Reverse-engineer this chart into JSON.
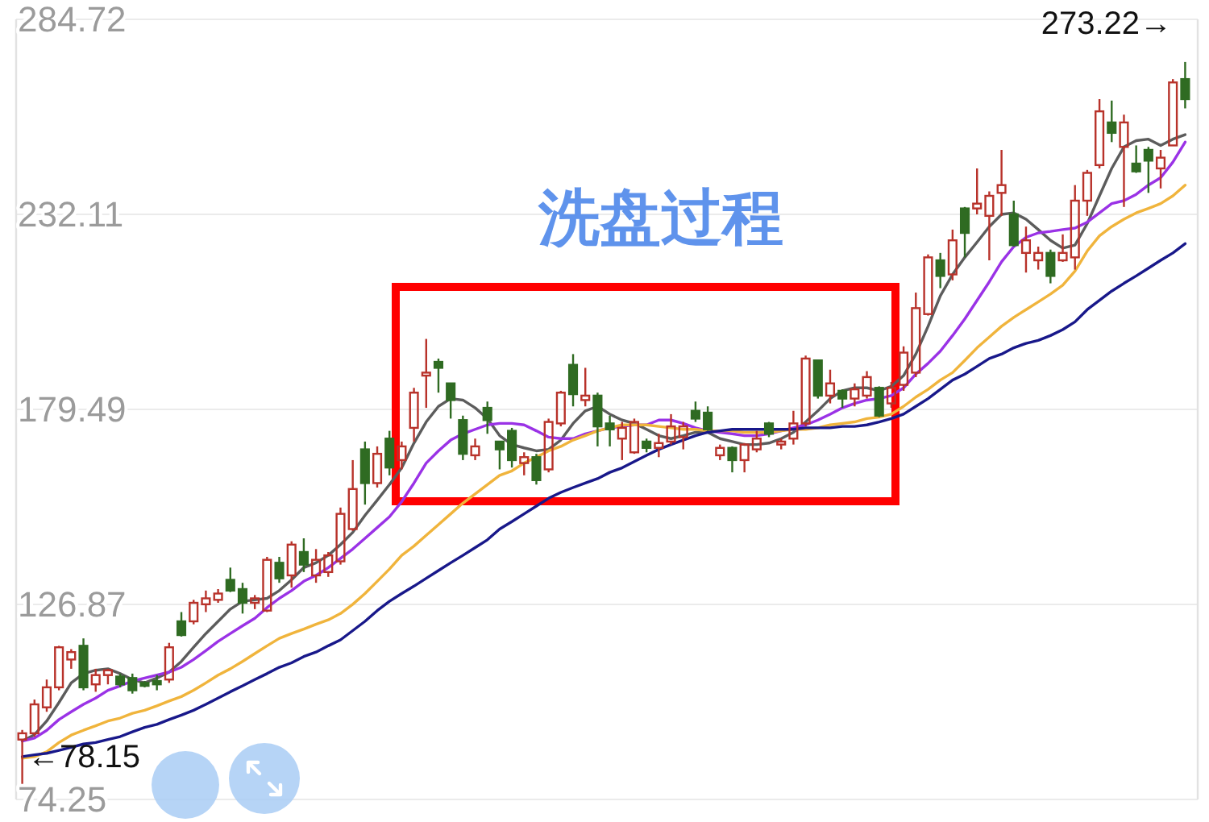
{
  "chart_data": {
    "type": "candlestick",
    "categories": [
      null,
      null,
      null,
      null,
      null,
      null,
      null,
      null,
      null,
      null,
      null,
      null,
      null,
      null,
      null,
      null,
      null,
      null,
      null,
      null,
      null,
      null,
      null,
      null,
      null,
      null,
      null,
      null,
      null,
      null,
      null,
      null,
      null,
      null,
      null,
      null,
      null,
      null,
      null,
      null,
      null,
      null,
      null,
      null,
      null,
      null,
      null,
      null,
      null,
      null,
      null,
      null,
      null,
      null,
      null,
      null,
      null,
      null,
      null,
      null,
      null,
      null,
      null,
      null,
      null,
      null,
      null,
      null,
      null,
      null,
      null,
      null,
      null,
      null,
      null,
      null,
      null,
      null,
      null,
      null,
      null,
      null,
      null,
      null,
      null,
      null,
      null,
      null,
      null,
      null,
      null,
      null,
      null,
      null,
      null,
      null
    ],
    "ohlc": [
      [
        90.4,
        93.0,
        78.15,
        92.1
      ],
      [
        92.1,
        101.2,
        91.2,
        99.9
      ],
      [
        99.1,
        106.6,
        97.9,
        104.5
      ],
      [
        104.5,
        115.7,
        103.7,
        115.3
      ],
      [
        112.0,
        114.8,
        109.5,
        114.0
      ],
      [
        115.7,
        117.7,
        103.7,
        104.5
      ],
      [
        105.3,
        109.5,
        103.3,
        107.8
      ],
      [
        107.8,
        109.5,
        105.3,
        109.1
      ],
      [
        107.4,
        108.2,
        104.5,
        105.3
      ],
      [
        107.0,
        108.2,
        102.8,
        103.7
      ],
      [
        105.7,
        106.2,
        104.5,
        104.9
      ],
      [
        106.2,
        107.8,
        103.7,
        105.3
      ],
      [
        106.6,
        116.5,
        105.7,
        115.3
      ],
      [
        122.3,
        124.8,
        118.2,
        118.6
      ],
      [
        122.3,
        128.1,
        121.5,
        127.3
      ],
      [
        126.9,
        130.6,
        124.8,
        128.5
      ],
      [
        128.1,
        131.0,
        127.3,
        129.8
      ],
      [
        133.5,
        136.8,
        130.2,
        130.6
      ],
      [
        131.0,
        132.7,
        124.4,
        127.3
      ],
      [
        127.3,
        129.4,
        125.6,
        128.5
      ],
      [
        125.2,
        139.7,
        124.8,
        138.9
      ],
      [
        138.1,
        139.7,
        132.7,
        133.9
      ],
      [
        134.7,
        143.9,
        131.4,
        143.0
      ],
      [
        141.0,
        144.7,
        135.6,
        137.6
      ],
      [
        134.7,
        141.8,
        132.7,
        138.9
      ],
      [
        135.6,
        141.0,
        134.3,
        140.1
      ],
      [
        138.5,
        153.0,
        137.6,
        151.3
      ],
      [
        147.2,
        165.8,
        146.7,
        158.0
      ],
      [
        168.7,
        170.8,
        153.8,
        159.6
      ],
      [
        159.6,
        169.5,
        158.4,
        167.5
      ],
      [
        171.6,
        173.7,
        161.7,
        163.8
      ],
      [
        165.8,
        170.8,
        163.3,
        169.5
      ],
      [
        174.5,
        185.3,
        170.8,
        184.0
      ],
      [
        188.6,
        198.5,
        179.9,
        189.4
      ],
      [
        192.3,
        193.2,
        184.0,
        190.7
      ],
      [
        186.5,
        186.5,
        177.0,
        182.0
      ],
      [
        176.6,
        177.8,
        165.8,
        167.5
      ],
      [
        167.1,
        171.6,
        165.8,
        169.5
      ],
      [
        179.9,
        181.6,
        172.9,
        176.6
      ],
      [
        170.8,
        170.8,
        163.3,
        168.7
      ],
      [
        173.7,
        174.5,
        163.8,
        165.8
      ],
      [
        165.0,
        167.9,
        161.7,
        166.6
      ],
      [
        166.6,
        167.5,
        159.2,
        160.4
      ],
      [
        163.3,
        177.0,
        162.5,
        176.1
      ],
      [
        175.7,
        184.5,
        174.9,
        184.0
      ],
      [
        191.5,
        194.4,
        180.3,
        183.6
      ],
      [
        182.0,
        190.7,
        180.3,
        183.2
      ],
      [
        183.2,
        184.0,
        169.5,
        174.9
      ],
      [
        175.7,
        177.8,
        169.5,
        174.1
      ],
      [
        171.6,
        176.1,
        165.8,
        174.5
      ],
      [
        167.9,
        177.0,
        167.5,
        176.1
      ],
      [
        170.8,
        171.6,
        167.9,
        169.1
      ],
      [
        169.1,
        172.9,
        166.6,
        170.4
      ],
      [
        170.8,
        178.2,
        170.0,
        174.9
      ],
      [
        172.0,
        176.1,
        168.7,
        174.9
      ],
      [
        179.1,
        181.6,
        176.1,
        177.0
      ],
      [
        178.6,
        180.3,
        173.7,
        174.1
      ],
      [
        167.1,
        170.0,
        165.8,
        169.1
      ],
      [
        169.1,
        169.5,
        162.5,
        165.8
      ],
      [
        165.8,
        170.4,
        162.5,
        170.0
      ],
      [
        168.7,
        173.7,
        167.9,
        171.6
      ],
      [
        175.7,
        176.1,
        172.0,
        172.9
      ],
      [
        170.0,
        171.6,
        168.7,
        170.8
      ],
      [
        171.6,
        179.1,
        170.0,
        175.7
      ],
      [
        175.7,
        194.0,
        174.9,
        193.2
      ],
      [
        192.7,
        192.7,
        182.4,
        183.2
      ],
      [
        183.2,
        190.2,
        181.1,
        186.5
      ],
      [
        184.5,
        184.9,
        179.9,
        182.4
      ],
      [
        182.4,
        186.5,
        180.3,
        184.9
      ],
      [
        183.2,
        189.8,
        182.4,
        188.2
      ],
      [
        185.3,
        185.7,
        177.4,
        177.8
      ],
      [
        181.1,
        186.9,
        179.9,
        185.3
      ],
      [
        186.1,
        196.5,
        184.5,
        194.8
      ],
      [
        189.4,
        211.0,
        188.2,
        206.8
      ],
      [
        205.2,
        221.3,
        204.8,
        220.5
      ],
      [
        219.7,
        221.7,
        212.2,
        215.5
      ],
      [
        215.9,
        228.0,
        214.3,
        225.1
      ],
      [
        233.7,
        234.1,
        220.5,
        227.1
      ],
      [
        233.7,
        244.5,
        232.1,
        235.0
      ],
      [
        231.7,
        238.3,
        219.7,
        237.1
      ],
      [
        237.9,
        249.5,
        231.7,
        240.0
      ],
      [
        232.1,
        235.8,
        223.4,
        223.8
      ],
      [
        221.7,
        228.8,
        216.4,
        225.1
      ],
      [
        219.7,
        223.4,
        217.2,
        221.7
      ],
      [
        221.7,
        222.6,
        213.5,
        215.5
      ],
      [
        219.7,
        226.7,
        219.3,
        221.7
      ],
      [
        220.5,
        240.0,
        217.2,
        235.8
      ],
      [
        235.8,
        244.1,
        231.7,
        243.3
      ],
      [
        245.4,
        263.2,
        244.5,
        259.9
      ],
      [
        256.9,
        262.8,
        251.6,
        254.1
      ],
      [
        250.3,
        259.0,
        234.1,
        256.9
      ],
      [
        245.8,
        250.7,
        243.3,
        243.7
      ],
      [
        249.5,
        250.3,
        237.9,
        246.6
      ],
      [
        244.5,
        249.5,
        239.1,
        247.4
      ],
      [
        250.7,
        268.6,
        250.7,
        267.7
      ],
      [
        268.6,
        273.22,
        260.7,
        263.2
      ]
    ],
    "colors": [
      "#b8322a",
      "#b8322a",
      "#b8322a",
      "#b8322a",
      "#b8322a",
      "#2f6b22",
      "#b8322a",
      "#b8322a",
      "#2f6b22",
      "#2f6b22",
      "#2f6b22",
      "#2f6b22",
      "#b8322a",
      "#2f6b22",
      "#b8322a",
      "#b8322a",
      "#b8322a",
      "#2f6b22",
      "#2f6b22",
      "#b8322a",
      "#b8322a",
      "#2f6b22",
      "#b8322a",
      "#2f6b22",
      "#b8322a",
      "#b8322a",
      "#b8322a",
      "#b8322a",
      "#2f6b22",
      "#b8322a",
      "#2f6b22",
      "#b8322a",
      "#b8322a",
      "#b8322a",
      "#2f6b22",
      "#2f6b22",
      "#2f6b22",
      "#b8322a",
      "#2f6b22",
      "#2f6b22",
      "#2f6b22",
      "#b8322a",
      "#2f6b22",
      "#b8322a",
      "#b8322a",
      "#2f6b22",
      "#b8322a",
      "#2f6b22",
      "#2f6b22",
      "#b8322a",
      "#b8322a",
      "#2f6b22",
      "#b8322a",
      "#b8322a",
      "#b8322a",
      "#2f6b22",
      "#2f6b22",
      "#b8322a",
      "#2f6b22",
      "#b8322a",
      "#b8322a",
      "#2f6b22",
      "#b8322a",
      "#b8322a",
      "#b8322a",
      "#2f6b22",
      "#b8322a",
      "#2f6b22",
      "#b8322a",
      "#b8322a",
      "#2f6b22",
      "#b8322a",
      "#b8322a",
      "#b8322a",
      "#b8322a",
      "#2f6b22",
      "#b8322a",
      "#2f6b22",
      "#b8322a",
      "#b8322a",
      "#b8322a",
      "#2f6b22",
      "#b8322a",
      "#b8322a",
      "#2f6b22",
      "#b8322a",
      "#b8322a",
      "#b8322a",
      "#b8322a",
      "#2f6b22",
      "#b8322a",
      "#2f6b22",
      "#2f6b22",
      "#b8322a",
      "#b8322a",
      "#2f6b22"
    ],
    "series": [
      {
        "type": "line",
        "color": "#5c5c5c",
        "values": [
          90.0,
          91.7,
          95.4,
          100.4,
          105.7,
          108.2,
          109.1,
          109.5,
          108.2,
          106.6,
          105.7,
          107.0,
          108.6,
          111.5,
          115.3,
          119.0,
          122.3,
          125.6,
          127.7,
          128.1,
          128.5,
          130.6,
          133.5,
          136.8,
          138.1,
          140.1,
          143.0,
          146.3,
          150.9,
          155.0,
          159.2,
          163.7,
          170.4,
          176.1,
          180.3,
          182.4,
          182.0,
          179.9,
          177.0,
          172.4,
          170.0,
          169.1,
          168.3,
          168.7,
          171.2,
          175.7,
          179.1,
          180.3,
          178.2,
          176.6,
          175.7,
          174.1,
          172.4,
          171.6,
          172.4,
          173.3,
          173.3,
          171.6,
          170.8,
          170.0,
          170.0,
          170.4,
          171.6,
          173.3,
          176.1,
          179.1,
          182.4,
          184.5,
          185.3,
          185.3,
          184.5,
          185.7,
          188.6,
          194.4,
          201.9,
          210.1,
          215.9,
          220.5,
          224.6,
          228.8,
          232.1,
          232.5,
          230.8,
          228.0,
          225.1,
          223.0,
          223.8,
          229.6,
          237.1,
          244.5,
          250.3,
          252.0,
          252.4,
          250.7,
          252.4,
          253.6
        ]
      },
      {
        "type": "line",
        "color": "#9a32e6",
        "values": [
          90.0,
          90.8,
          92.9,
          95.8,
          97.9,
          99.9,
          101.6,
          103.7,
          104.9,
          106.2,
          107.0,
          107.8,
          108.6,
          109.9,
          112.0,
          114.4,
          116.9,
          119.0,
          121.1,
          123.1,
          126.0,
          128.5,
          130.6,
          133.1,
          134.7,
          136.8,
          139.3,
          141.8,
          144.7,
          147.6,
          150.5,
          154.6,
          159.6,
          165.0,
          168.3,
          171.2,
          172.9,
          174.1,
          175.3,
          175.7,
          175.7,
          175.3,
          173.7,
          172.0,
          171.6,
          171.6,
          172.9,
          173.7,
          174.5,
          174.9,
          175.3,
          175.3,
          176.6,
          176.6,
          175.7,
          174.5,
          173.7,
          173.3,
          172.9,
          172.4,
          172.4,
          172.9,
          173.7,
          174.5,
          175.3,
          176.6,
          178.2,
          179.9,
          181.1,
          182.0,
          182.4,
          183.2,
          185.3,
          189.0,
          191.9,
          195.2,
          199.4,
          203.9,
          208.9,
          213.9,
          219.3,
          223.4,
          225.9,
          227.1,
          227.5,
          228.0,
          228.4,
          230.0,
          232.5,
          235.0,
          235.8,
          237.5,
          240.0,
          242.0,
          246.2,
          251.6
        ]
      },
      {
        "type": "line",
        "color": "#f0b43c",
        "values": [
          85.4,
          85.8,
          87.1,
          89.6,
          91.6,
          92.9,
          94.1,
          95.4,
          96.2,
          97.5,
          98.3,
          99.5,
          100.8,
          102.0,
          103.7,
          105.7,
          107.8,
          109.5,
          111.5,
          113.6,
          115.7,
          117.7,
          119.0,
          120.2,
          121.5,
          122.7,
          124.4,
          126.9,
          129.8,
          133.1,
          136.4,
          140.1,
          142.6,
          145.5,
          148.4,
          151.3,
          154.2,
          156.7,
          159.2,
          161.7,
          162.9,
          165.0,
          166.6,
          168.3,
          169.5,
          171.2,
          172.4,
          173.7,
          174.5,
          175.3,
          175.3,
          175.3,
          174.9,
          174.5,
          174.1,
          174.1,
          173.7,
          173.7,
          173.7,
          173.3,
          173.3,
          173.3,
          173.7,
          174.1,
          174.1,
          174.5,
          175.3,
          175.7,
          176.1,
          177.0,
          177.4,
          178.2,
          180.3,
          182.8,
          184.9,
          187.4,
          189.4,
          192.7,
          196.1,
          199.0,
          201.9,
          204.3,
          206.4,
          208.5,
          210.6,
          213.0,
          216.8,
          222.2,
          226.3,
          228.8,
          230.8,
          232.5,
          233.7,
          235.0,
          237.1,
          240.0
        ]
      },
      {
        "type": "line",
        "color": "#18188a",
        "values": [
          85.8,
          86.3,
          86.7,
          87.5,
          88.3,
          89.2,
          89.6,
          90.4,
          91.2,
          92.5,
          93.7,
          94.5,
          95.8,
          97.0,
          98.3,
          99.9,
          101.6,
          103.3,
          104.9,
          106.6,
          108.2,
          109.9,
          111.1,
          112.8,
          114.0,
          115.7,
          117.3,
          119.8,
          122.3,
          125.2,
          127.7,
          129.8,
          131.8,
          133.9,
          136.0,
          138.1,
          140.1,
          142.2,
          144.3,
          147.2,
          149.2,
          151.3,
          153.4,
          155.5,
          157.1,
          158.4,
          159.6,
          160.8,
          162.5,
          163.7,
          165.4,
          167.1,
          168.7,
          170.0,
          171.2,
          172.4,
          173.3,
          173.7,
          174.1,
          174.1,
          174.1,
          174.1,
          174.1,
          174.1,
          174.5,
          174.5,
          174.5,
          174.9,
          174.9,
          175.3,
          176.1,
          177.0,
          178.2,
          180.3,
          182.4,
          184.9,
          187.4,
          189.0,
          191.1,
          193.2,
          194.4,
          196.1,
          197.3,
          198.1,
          199.4,
          201.0,
          203.1,
          206.4,
          208.9,
          211.4,
          213.5,
          215.5,
          217.6,
          219.7,
          221.7,
          224.2
        ]
      }
    ],
    "ylim": [
      74.25,
      284.72
    ],
    "yticks": [
      74.25,
      126.87,
      179.49,
      232.11,
      284.72
    ],
    "grid": "y",
    "tick_labels": "y",
    "annotations": [
      "洗盘过程",
      "273.22→",
      "←78.15"
    ]
  }
}
